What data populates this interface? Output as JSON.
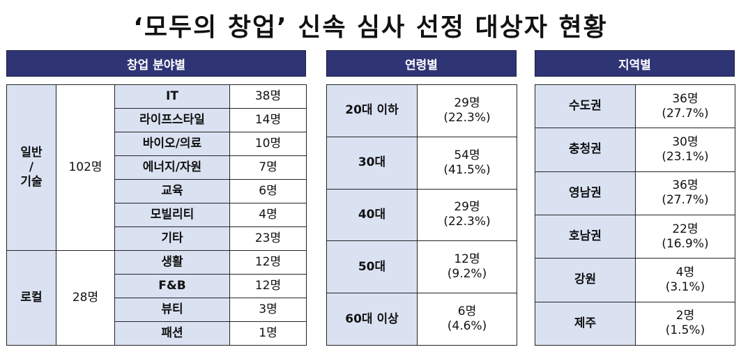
{
  "title": "‘모두의 창업’ 신속 심사 선정 대상자 현황",
  "field": {
    "header": "창업 분야별",
    "groups": [
      {
        "name_lines": [
          "일반",
          "/",
          "기술"
        ],
        "total": "102명",
        "rows": [
          {
            "label": "IT",
            "value": "38명"
          },
          {
            "label": "라이프스타일",
            "value": "14명"
          },
          {
            "label": "바이오/의료",
            "value": "10명"
          },
          {
            "label": "에너지/자원",
            "value": "7명"
          },
          {
            "label": "교육",
            "value": "6명"
          },
          {
            "label": "모빌리티",
            "value": "4명"
          },
          {
            "label": "기타",
            "value": "23명"
          }
        ]
      },
      {
        "name_lines": [
          "로컬"
        ],
        "total": "28명",
        "rows": [
          {
            "label": "생활",
            "value": "12명"
          },
          {
            "label": "F&B",
            "value": "12명"
          },
          {
            "label": "뷰티",
            "value": "3명"
          },
          {
            "label": "패션",
            "value": "1명"
          }
        ]
      }
    ]
  },
  "age": {
    "header": "연령별",
    "rows": [
      {
        "label": "20대 이하",
        "count": "29명",
        "pct": "(22.3%)"
      },
      {
        "label": "30대",
        "count": "54명",
        "pct": "(41.5%)"
      },
      {
        "label": "40대",
        "count": "29명",
        "pct": "(22.3%)"
      },
      {
        "label": "50대",
        "count": "12명",
        "pct": "(9.2%)"
      },
      {
        "label": "60대 이상",
        "count": "6명",
        "pct": "(4.6%)"
      }
    ]
  },
  "region": {
    "header": "지역별",
    "rows": [
      {
        "label": "수도권",
        "count": "36명",
        "pct": "(27.7%)"
      },
      {
        "label": "충청권",
        "count": "30명",
        "pct": "(23.1%)"
      },
      {
        "label": "영남권",
        "count": "36명",
        "pct": "(27.7%)"
      },
      {
        "label": "호남권",
        "count": "22명",
        "pct": "(16.9%)"
      },
      {
        "label": "강원",
        "count": "4명",
        "pct": "(3.1%)"
      },
      {
        "label": "제주",
        "count": "2명",
        "pct": "(1.5%)"
      }
    ]
  }
}
